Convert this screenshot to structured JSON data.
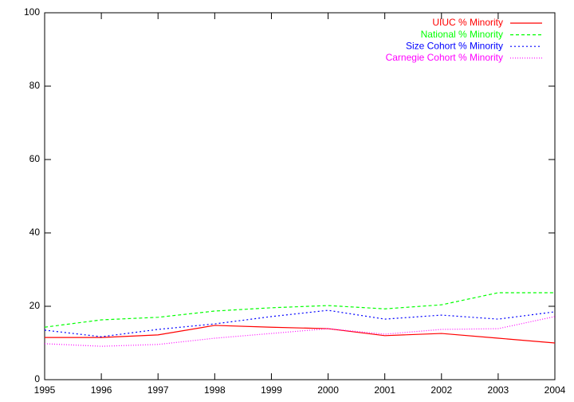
{
  "chart_data": {
    "type": "line",
    "x": [
      1995,
      1996,
      1997,
      1998,
      1999,
      2000,
      2001,
      2002,
      2003,
      2004
    ],
    "series": [
      {
        "name": "UIUC % Minority",
        "color": "#ff0000",
        "values": [
          11.5,
          11.5,
          12.2,
          14.8,
          14.3,
          13.9,
          12.0,
          12.6,
          11.3,
          10.0
        ]
      },
      {
        "name": "National % Minority",
        "color": "#00ff00",
        "values": [
          14.3,
          16.3,
          17.0,
          18.7,
          19.6,
          20.2,
          19.3,
          20.4,
          23.7,
          23.7
        ]
      },
      {
        "name": "Size Cohort % Minority",
        "color": "#0000ff",
        "values": [
          13.5,
          11.7,
          13.7,
          15.2,
          17.2,
          18.9,
          16.5,
          17.6,
          16.5,
          18.5
        ]
      },
      {
        "name": "Carnegie Cohort % Minority",
        "color": "#ff00ff",
        "values": [
          9.8,
          9.1,
          9.6,
          11.3,
          12.6,
          13.9,
          12.4,
          13.7,
          13.9,
          17.2
        ]
      }
    ],
    "xlim": [
      1995,
      2004
    ],
    "xticks": [
      1995,
      1996,
      1997,
      1998,
      1999,
      2000,
      2001,
      2002,
      2003,
      2004
    ],
    "ylim": [
      0,
      100
    ],
    "yticks": [
      0,
      20,
      40,
      60,
      80,
      100
    ],
    "legend": "top-right"
  }
}
